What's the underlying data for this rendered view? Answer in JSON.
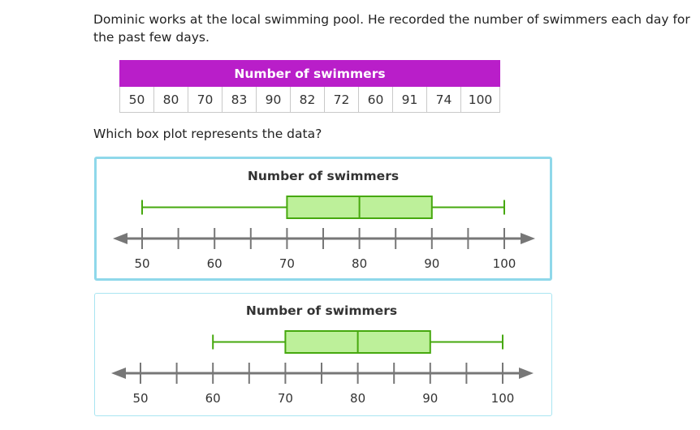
{
  "question": "Dominic works at the local swimming pool. He recorded the number of swimmers each day for the past few days.",
  "table": {
    "header": "Number of swimmers",
    "values": [
      "50",
      "80",
      "70",
      "83",
      "90",
      "82",
      "72",
      "60",
      "91",
      "74",
      "100"
    ]
  },
  "prompt": "Which box plot represents the data?",
  "colors": {
    "table_header": "#b91ec9",
    "box_fill": "#bdf09a",
    "box_stroke": "#46a80e",
    "axis": "#777777",
    "selected_border": "#8fd8ea"
  },
  "chart_data": [
    {
      "type": "boxplot",
      "title": "Number of swimmers",
      "min": 50,
      "q1": 70,
      "median": 80,
      "q3": 90,
      "max": 100,
      "axis": {
        "min": 50,
        "max": 100,
        "tick_step": 5,
        "labels": [
          "50",
          "60",
          "70",
          "80",
          "90",
          "100"
        ]
      },
      "selected": true
    },
    {
      "type": "boxplot",
      "title": "Number of swimmers",
      "min": 60,
      "q1": 70,
      "median": 80,
      "q3": 90,
      "max": 100,
      "axis": {
        "min": 50,
        "max": 100,
        "tick_step": 5,
        "labels": [
          "50",
          "60",
          "70",
          "80",
          "90",
          "100"
        ]
      },
      "selected": false
    }
  ]
}
